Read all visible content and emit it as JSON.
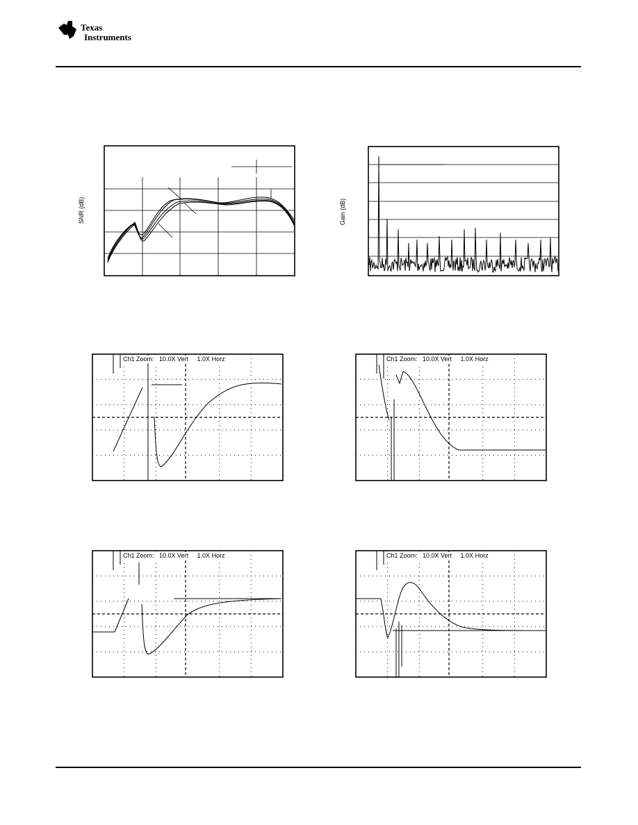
{
  "header": {
    "logo": [
      "Texas",
      "Instruments"
    ]
  },
  "figures": [
    {
      "ylabel": "SNR (dB)"
    },
    {
      "ylabel": "Gain (dB)"
    },
    {
      "caption": "Ch1 Zoom:   10.0X Vert     1.0X Horz"
    },
    {
      "caption": "Ch1 Zoom:   10.0X Vert     1.0X Horz"
    },
    {
      "caption": "Ch1 Zoom:   10.0X Vert     1.0X Horz"
    },
    {
      "caption": "Ch1 Zoom:   10.0X Vert     1.0X Horz"
    }
  ]
}
